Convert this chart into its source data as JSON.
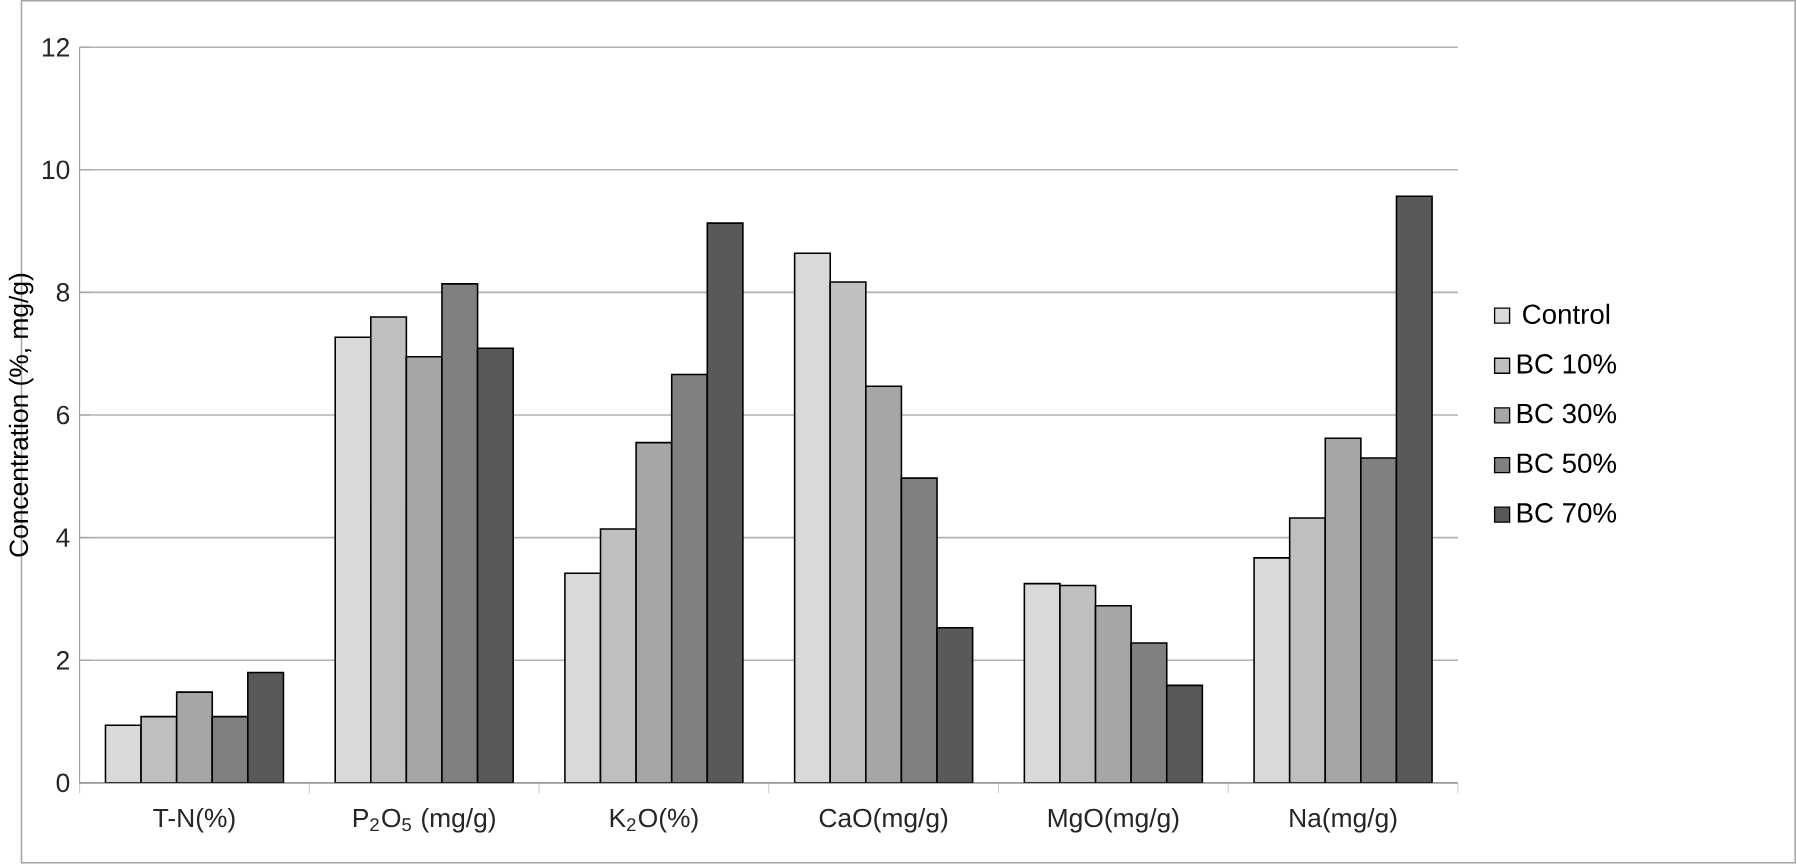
{
  "chart_data": {
    "type": "bar",
    "ylabel": "Concentration (%, mg/g)",
    "categories": [
      "T-N(%)",
      "P$_{2}$O$_{5}$ (mg/g)",
      "K$_{2}$O(%)",
      "CaO(mg/g)",
      "MgO(mg/g)",
      "Na(mg/g)"
    ],
    "series": [
      {
        "name": "Control",
        "color": "#d9d9d9",
        "values": [
          0.94,
          7.27,
          3.42,
          8.64,
          3.25,
          3.67
        ]
      },
      {
        "name": "BC 10%",
        "color": "#bfbfbf",
        "values": [
          1.08,
          7.6,
          4.14,
          8.17,
          3.22,
          4.32
        ]
      },
      {
        "name": "BC 30%",
        "color": "#a6a6a6",
        "values": [
          1.48,
          6.95,
          5.55,
          6.47,
          2.89,
          5.62
        ]
      },
      {
        "name": "BC 50%",
        "color": "#808080",
        "values": [
          1.08,
          8.14,
          6.66,
          4.97,
          2.28,
          5.3
        ]
      },
      {
        "name": "BC 70%",
        "color": "#595959",
        "values": [
          1.8,
          7.09,
          9.13,
          2.53,
          1.59,
          9.57
        ]
      }
    ],
    "ylim": [
      0,
      12
    ],
    "yticks": [
      0,
      2,
      4,
      6,
      8,
      10,
      12
    ],
    "grid": "y",
    "legend": "right"
  }
}
